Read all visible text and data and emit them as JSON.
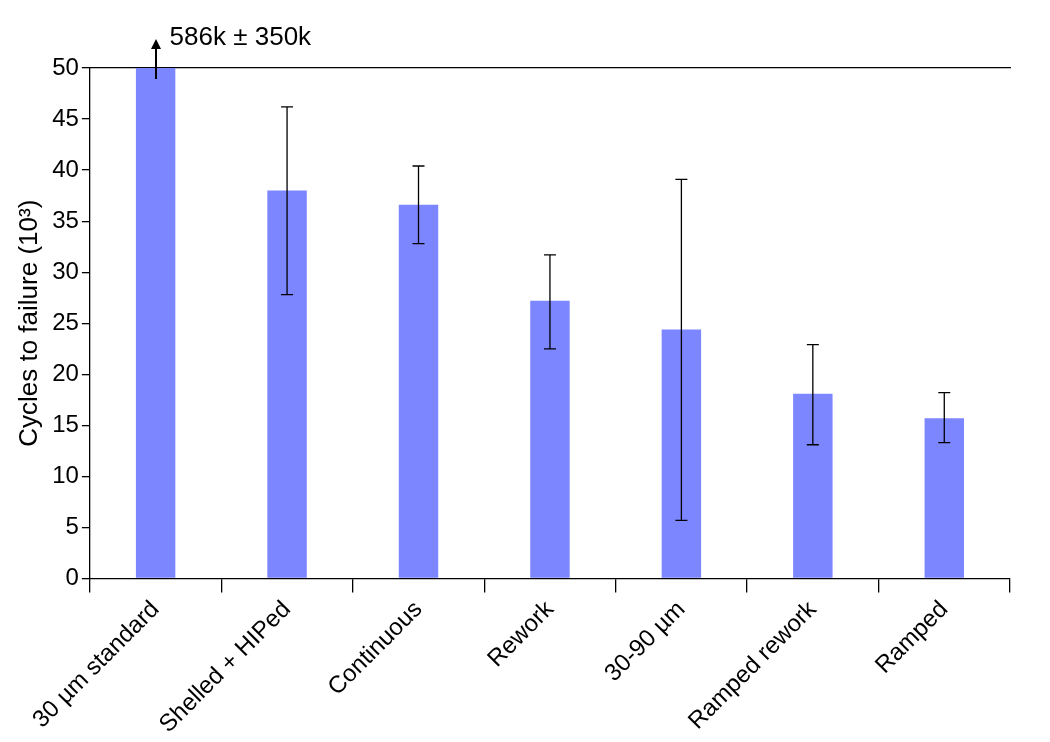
{
  "chart_data": {
    "type": "bar",
    "ylabel": "Cycles to failure (10³)",
    "categories": [
      "30 µm standard",
      "Shelled + HIPed",
      "Continuous",
      "Rework",
      "30-90 µm",
      "Ramped rework",
      "Ramped"
    ],
    "values": [
      50,
      38.0,
      36.6,
      27.2,
      24.4,
      18.1,
      15.7
    ],
    "errors": [
      null,
      [
        27.8,
        46.2
      ],
      [
        32.8,
        40.4
      ],
      [
        22.5,
        31.7
      ],
      [
        5.7,
        39.1
      ],
      [
        13.1,
        22.9
      ],
      [
        13.3,
        18.2
      ]
    ],
    "color": "#7b86ff",
    "ylim": [
      0,
      50
    ],
    "yticks": [
      0,
      5,
      10,
      15,
      20,
      25,
      30,
      35,
      40,
      45,
      50
    ],
    "grid": false,
    "legend": false,
    "annotations": [
      {
        "text": "586k ± 350k",
        "x": "30 µm standard",
        "y": 50
      }
    ]
  }
}
